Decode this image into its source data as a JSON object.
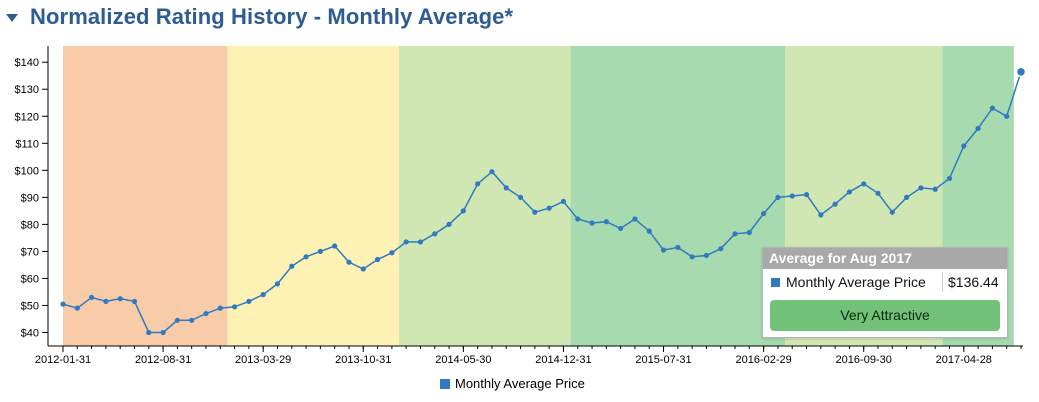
{
  "header": {
    "title": "Normalized Rating History - Monthly Average*"
  },
  "chart_data": {
    "type": "line",
    "title": "Normalized Rating History - Monthly Average*",
    "y_ticks": [
      "$40",
      "$50",
      "$60",
      "$70",
      "$80",
      "$90",
      "$100",
      "$110",
      "$120",
      "$130",
      "$140"
    ],
    "y_min": 35,
    "y_max": 146,
    "x_ticks": [
      "2012-01-31",
      "2012-08-31",
      "2013-03-29",
      "2013-10-31",
      "2014-05-30",
      "2014-12-31",
      "2015-07-31",
      "2016-02-29",
      "2016-09-30",
      "2017-04-28"
    ],
    "bands": [
      {
        "start": 0,
        "end": 11.5,
        "color": "#f9cca9"
      },
      {
        "start": 11.5,
        "end": 23.5,
        "color": "#fdf1b3"
      },
      {
        "start": 23.5,
        "end": 35.5,
        "color": "#d1e7b3"
      },
      {
        "start": 35.5,
        "end": 50.5,
        "color": "#a8daaf"
      },
      {
        "start": 50.5,
        "end": 61.5,
        "color": "#d1e7b3"
      },
      {
        "start": 61.5,
        "end": 66.5,
        "color": "#a8daaf"
      }
    ],
    "series": [
      {
        "name": "Monthly Average Price",
        "color": "#2f7ac0",
        "values": [
          50.5,
          49,
          53,
          51.5,
          52.5,
          51.5,
          40,
          40,
          44.5,
          44.5,
          47,
          49,
          49.5,
          51.5,
          54,
          58,
          64.5,
          68,
          70,
          72,
          66,
          63.5,
          67,
          69.5,
          73.5,
          73.5,
          76.5,
          80,
          85,
          95,
          99.5,
          93.5,
          90,
          84.5,
          86,
          88.5,
          82,
          80.5,
          81,
          78.5,
          82,
          77.5,
          70.5,
          71.5,
          68,
          68.5,
          71,
          76.5,
          77,
          84,
          90,
          90.5,
          91,
          83.5,
          87.5,
          92,
          95,
          91.5,
          84.5,
          90,
          93.5,
          93,
          97,
          109,
          115.5,
          123,
          120,
          136.44
        ]
      }
    ],
    "legend": {
      "label": "Monthly Average Price",
      "placement": "bottom"
    }
  },
  "tooltip": {
    "title": "Average for Aug 2017",
    "series_label": "Monthly Average Price",
    "value": "$136.44",
    "rating": "Very Attractive"
  }
}
